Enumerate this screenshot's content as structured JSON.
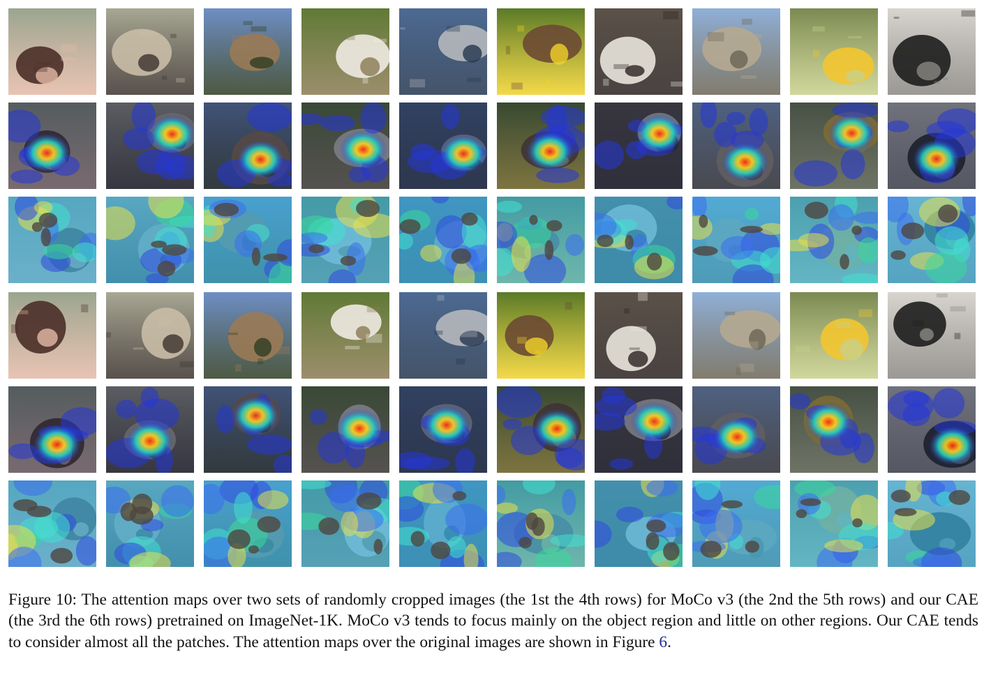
{
  "figure": {
    "caption_prefix": "Figure 10: The attention maps over two sets of randomly cropped images (the 1st the 4th rows) for MoCo v3 (the 2nd the 5th rows) and our CAE (the 3rd the 6th rows) pretrained on ImageNet-1K. MoCo v3 tends to focus mainly on the object region and little on other regions. Our CAE tends to consider almost all the patches. The attention maps over the original images are shown in Figure ",
    "caption_ref": "6",
    "caption_suffix": "."
  },
  "rows": [
    {
      "kind": "photo",
      "crop_set": 1
    },
    {
      "kind": "moco-attention",
      "crop_set": 1
    },
    {
      "kind": "cae-attention",
      "crop_set": 1
    },
    {
      "kind": "photo",
      "crop_set": 2
    },
    {
      "kind": "moco-attention",
      "crop_set": 2
    },
    {
      "kind": "cae-attention",
      "crop_set": 2
    }
  ],
  "columns": [
    {
      "subject": "person",
      "colors": {
        "bg": "#9aa58e",
        "fg": "#4a2f28",
        "accent": "#e4b9a6"
      }
    },
    {
      "subject": "stingray",
      "colors": {
        "bg": "#a8a894",
        "fg": "#c9bca6",
        "accent": "#3c332e"
      }
    },
    {
      "subject": "bell-tower",
      "colors": {
        "bg": "#6e8fc6",
        "fg": "#9a7a55",
        "accent": "#2f3d22"
      }
    },
    {
      "subject": "white-dog-grass",
      "colors": {
        "bg": "#5f7a35",
        "fg": "#eeeae2",
        "accent": "#8a7a52"
      }
    },
    {
      "subject": "aircraft-carrier",
      "colors": {
        "bg": "#4d6a93",
        "fg": "#b5b8bd",
        "accent": "#24364f"
      }
    },
    {
      "subject": "butterfly",
      "colors": {
        "bg": "#5a7a28",
        "fg": "#6b4a33",
        "accent": "#f1d22a"
      }
    },
    {
      "subject": "white-terrier",
      "colors": {
        "bg": "#5b5248",
        "fg": "#e9e4db",
        "accent": "#2a2220"
      }
    },
    {
      "subject": "dam",
      "colors": {
        "bg": "#8fb0d8",
        "fg": "#b5a890",
        "accent": "#6c6555"
      }
    },
    {
      "subject": "yellow-flowers",
      "colors": {
        "bg": "#7b8a52",
        "fg": "#f2c531",
        "accent": "#c9d08a"
      }
    },
    {
      "subject": "black-dog",
      "colors": {
        "bg": "#d8d5cf",
        "fg": "#1e1e1e",
        "accent": "#8a8782"
      }
    }
  ]
}
